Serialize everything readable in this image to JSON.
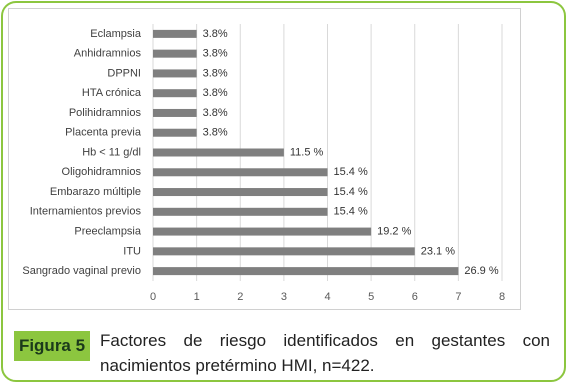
{
  "chart_data": {
    "type": "bar",
    "orientation": "horizontal",
    "categories": [
      "Eclampsia",
      "Anhidramnios",
      "DPPNI",
      "HTA crónica",
      "Polihidramnios",
      "Placenta previa",
      "Hb < 11 g/dl",
      "Oligohidramnios",
      "Embarazo múltiple",
      "Internamientos previos",
      "Preeclampsia",
      "ITU",
      "Sangrado vaginal previo"
    ],
    "values": [
      1,
      1,
      1,
      1,
      1,
      1,
      3,
      4,
      4,
      4,
      5,
      6,
      7
    ],
    "value_labels": [
      "3.8%",
      "3.8%",
      "3.8%",
      "3.8%",
      "3.8%",
      "3.8%",
      "11.5 %",
      "15.4 %",
      "15.4 %",
      "15.4 %",
      "19.2 %",
      "23.1 %",
      "26.9 %"
    ],
    "color": "#7f7f7f",
    "xlim": [
      0,
      8
    ],
    "xticks": [
      0,
      1,
      2,
      3,
      4,
      5,
      6,
      7,
      8
    ],
    "grid": true
  },
  "caption": {
    "label": "Figura 5",
    "text": "Factores de riesgo identificados en gestantes con nacimientos pretérmino HMI, n=422."
  }
}
